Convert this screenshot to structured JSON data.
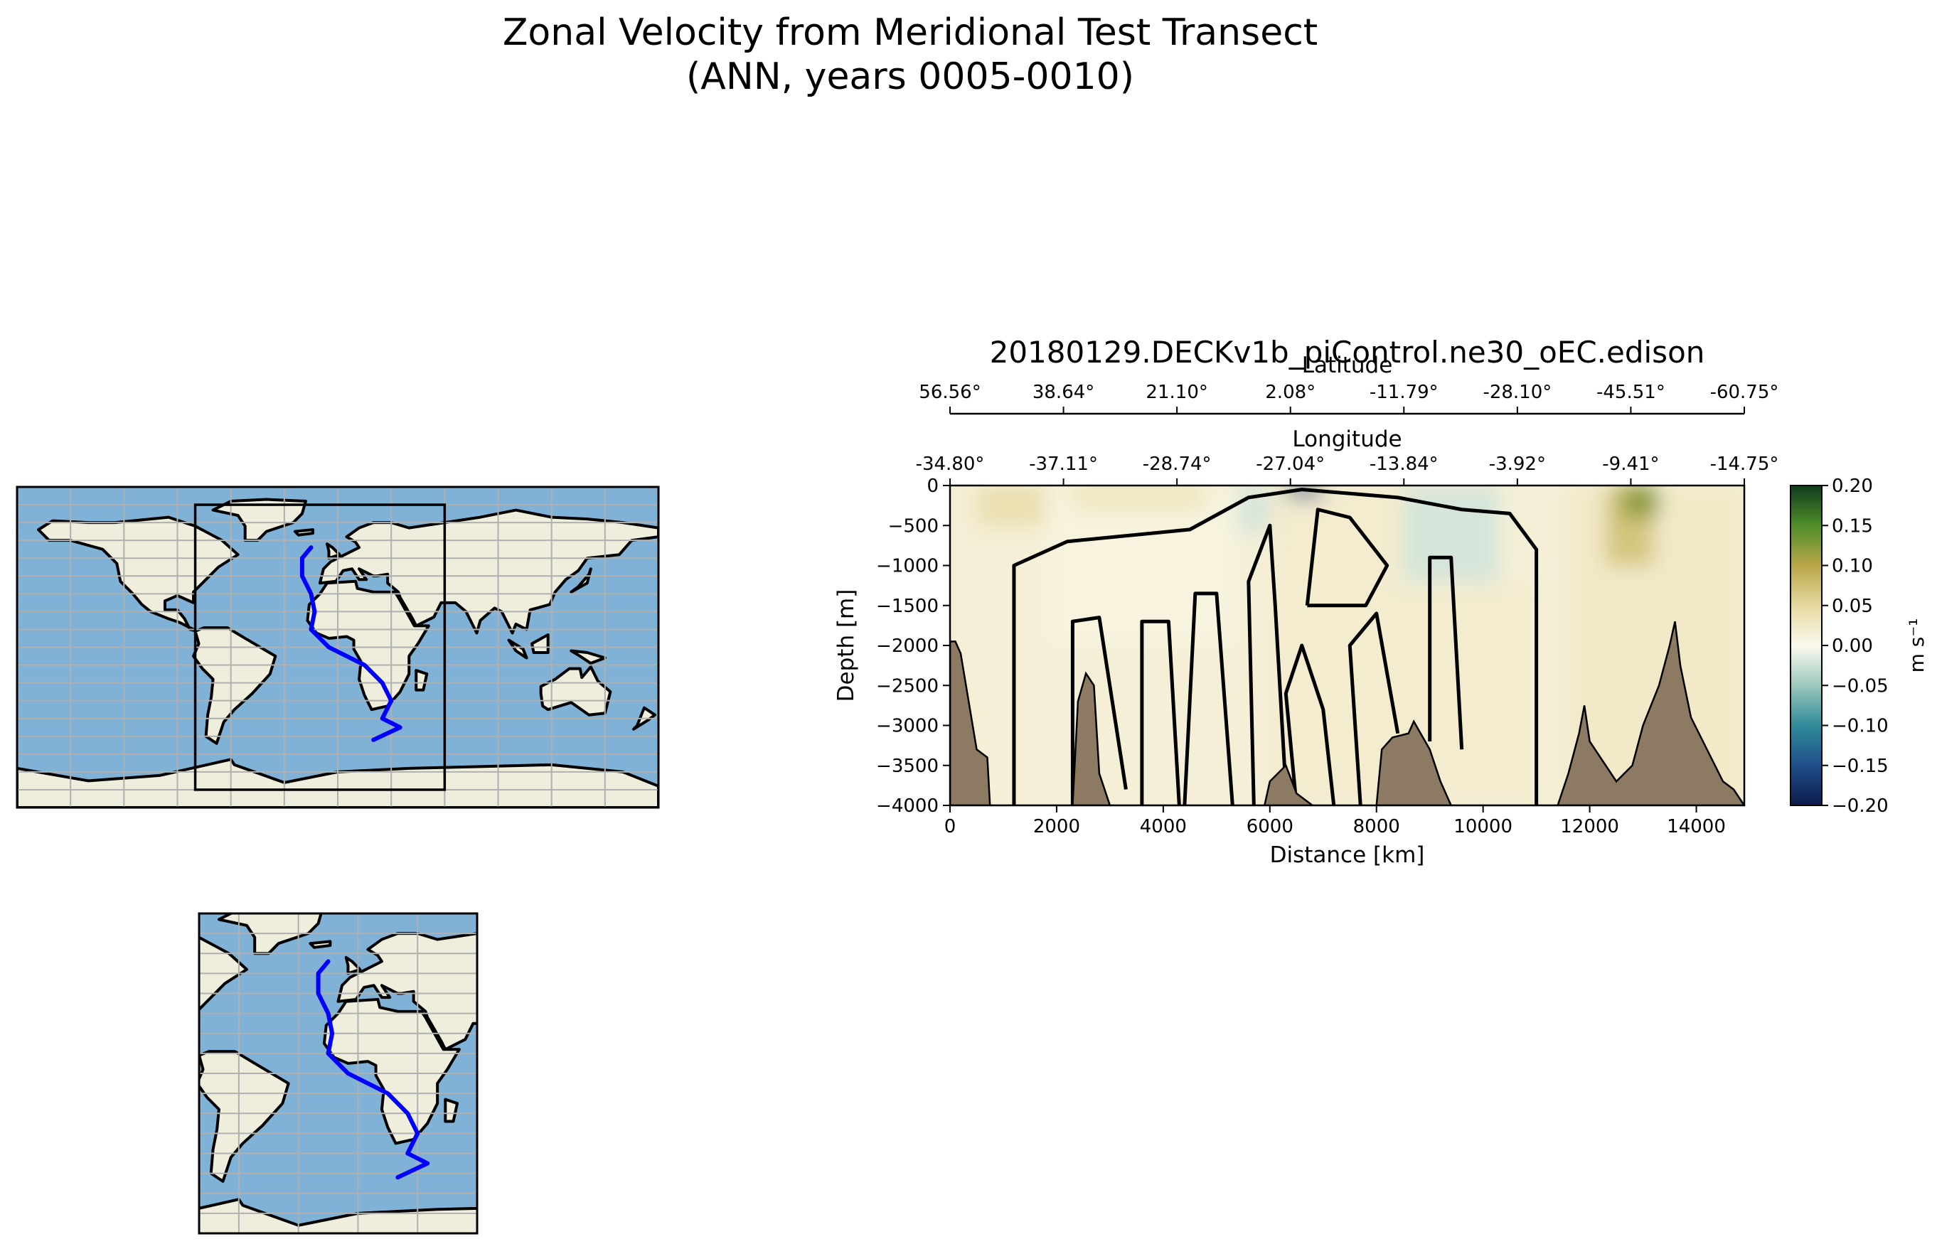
{
  "figure": {
    "suptitle_line1": "Zonal Velocity from Meridional Test Transect",
    "suptitle_line2": "(ANN, years 0005-0010)"
  },
  "maps": {
    "ocean_color": "#7fb2d6",
    "land_color": "#efeedd",
    "coast_color": "#000000",
    "grid_color": "#b0b0b0",
    "transect_color": "#0000ff",
    "global_lon_range": [
      -180,
      180
    ],
    "global_lat_range": [
      -90,
      90
    ],
    "inset_lon_range": [
      -80,
      60
    ],
    "inset_lat_range": [
      -80,
      80
    ],
    "transect_points": [
      [
        -15,
        56
      ],
      [
        -20,
        50
      ],
      [
        -20,
        40
      ],
      [
        -15,
        30
      ],
      [
        -13,
        20
      ],
      [
        -15,
        10
      ],
      [
        -5,
        0
      ],
      [
        15,
        -10
      ],
      [
        25,
        -20
      ],
      [
        30,
        -30
      ],
      [
        25,
        -40
      ],
      [
        35,
        -45
      ],
      [
        20,
        -52
      ]
    ]
  },
  "chart_data": {
    "type": "heatmap",
    "title": "20180129.DECKv1b_piControl.ne30_oEC.edison",
    "xlabel": "Distance [km]",
    "ylabel": "Depth [m]",
    "xlim": [
      0,
      14900
    ],
    "ylim": [
      -4000,
      0
    ],
    "x_ticks": [
      0,
      2000,
      4000,
      6000,
      8000,
      10000,
      12000,
      14000
    ],
    "x_tick_labels": [
      "0",
      "2000",
      "4000",
      "6000",
      "8000",
      "10000",
      "12000",
      "14000"
    ],
    "y_ticks": [
      0,
      -500,
      -1000,
      -1500,
      -2000,
      -2500,
      -3000,
      -3500,
      -4000
    ],
    "y_tick_labels": [
      "0",
      "−500",
      "−1000",
      "−1500",
      "−2000",
      "−2500",
      "−3000",
      "−3500",
      "−4000"
    ],
    "top_axes": [
      {
        "label": "Latitude",
        "tick_labels": [
          "56.56°",
          "38.64°",
          "21.10°",
          "2.08°",
          "-11.79°",
          "-28.10°",
          "-45.51°",
          "-60.75°"
        ]
      },
      {
        "label": "Longitude",
        "tick_labels": [
          "-34.80°",
          "-37.11°",
          "-28.74°",
          "-27.04°",
          "-13.84°",
          "-3.92°",
          "-9.41°",
          "-14.75°"
        ]
      }
    ],
    "colorbar": {
      "label": "m s⁻¹",
      "range": [
        -0.2,
        0.2
      ],
      "ticks": [
        0.2,
        0.15,
        0.1,
        0.05,
        0.0,
        -0.05,
        -0.1,
        -0.15,
        -0.2
      ],
      "tick_labels": [
        "0.20",
        "0.15",
        "0.10",
        "0.05",
        "0.00",
        "−0.05",
        "−0.10",
        "−0.15",
        "−0.20"
      ],
      "colors": [
        "#0e1a4a",
        "#1f4f8a",
        "#2f8a99",
        "#9cc8bd",
        "#fbf9ee",
        "#e6d9a0",
        "#b8a648",
        "#4f8e2a",
        "#0f3b1c"
      ]
    },
    "velocity_features": [
      {
        "x0": 500,
        "x1": 1800,
        "z0": 0,
        "z1": -500,
        "value": 0.04
      },
      {
        "x0": 1800,
        "x1": 5400,
        "z0": 0,
        "z1": -2000,
        "value": 0.01
      },
      {
        "x0": 2300,
        "x1": 4800,
        "z0": 0,
        "z1": -300,
        "value": 0.03
      },
      {
        "x0": 5400,
        "x1": 6000,
        "z0": 0,
        "z1": -600,
        "value": -0.02
      },
      {
        "x0": 6000,
        "x1": 8500,
        "z0": 0,
        "z1": -4000,
        "value": 0.02
      },
      {
        "x0": 6300,
        "x1": 7000,
        "z0": 0,
        "z1": -150,
        "value": -0.15
      },
      {
        "x0": 8500,
        "x1": 10300,
        "z0": 0,
        "z1": -1200,
        "value": -0.02
      },
      {
        "x0": 8500,
        "x1": 11000,
        "z0": -1200,
        "z1": -4000,
        "value": 0.02
      },
      {
        "x0": 11600,
        "x1": 14900,
        "z0": 0,
        "z1": -4000,
        "value": 0.025
      },
      {
        "x0": 12300,
        "x1": 13200,
        "z0": 0,
        "z1": -1000,
        "value": 0.07
      },
      {
        "x0": 12600,
        "x1": 13300,
        "z0": 0,
        "z1": -400,
        "value": 0.12
      }
    ],
    "bathymetry": [
      [
        0,
        -1950
      ],
      [
        100,
        -1950
      ],
      [
        200,
        -2100
      ],
      [
        500,
        -3300
      ],
      [
        700,
        -3400
      ],
      [
        750,
        -4000
      ],
      [
        2300,
        -4000
      ],
      [
        2400,
        -2700
      ],
      [
        2550,
        -2350
      ],
      [
        2700,
        -2500
      ],
      [
        2800,
        -3600
      ],
      [
        3000,
        -4000
      ],
      [
        5900,
        -4000
      ],
      [
        6000,
        -3700
      ],
      [
        6300,
        -3500
      ],
      [
        6500,
        -3850
      ],
      [
        6800,
        -4000
      ],
      [
        8000,
        -4000
      ],
      [
        8100,
        -3300
      ],
      [
        8300,
        -3150
      ],
      [
        8600,
        -3100
      ],
      [
        8700,
        -2950
      ],
      [
        9000,
        -3300
      ],
      [
        9200,
        -3700
      ],
      [
        9400,
        -4000
      ],
      [
        11400,
        -4000
      ],
      [
        11600,
        -3600
      ],
      [
        11800,
        -3100
      ],
      [
        11900,
        -2750
      ],
      [
        12000,
        -3200
      ],
      [
        12200,
        -3400
      ],
      [
        12500,
        -3700
      ],
      [
        12800,
        -3500
      ],
      [
        13000,
        -3000
      ],
      [
        13300,
        -2500
      ],
      [
        13500,
        -2000
      ],
      [
        13600,
        -1700
      ],
      [
        13700,
        -2250
      ],
      [
        13900,
        -2900
      ],
      [
        14200,
        -3300
      ],
      [
        14500,
        -3700
      ],
      [
        14700,
        -3800
      ],
      [
        14900,
        -4000
      ]
    ],
    "contours": [
      [
        [
          1200,
          -4000
        ],
        [
          1200,
          -1000
        ],
        [
          2200,
          -700
        ],
        [
          4500,
          -550
        ],
        [
          5600,
          -150
        ],
        [
          6600,
          -50
        ],
        [
          8400,
          -150
        ],
        [
          9600,
          -300
        ],
        [
          10500,
          -350
        ],
        [
          11000,
          -800
        ],
        [
          11000,
          -4000
        ]
      ],
      [
        [
          2300,
          -4000
        ],
        [
          2300,
          -1700
        ],
        [
          2800,
          -1650
        ],
        [
          3300,
          -3800
        ]
      ],
      [
        [
          3600,
          -4000
        ],
        [
          3600,
          -1700
        ],
        [
          4100,
          -1700
        ],
        [
          4300,
          -4000
        ]
      ],
      [
        [
          4400,
          -4000
        ],
        [
          4600,
          -1350
        ],
        [
          5000,
          -1350
        ],
        [
          5300,
          -4000
        ]
      ],
      [
        [
          5700,
          -4000
        ],
        [
          5600,
          -1200
        ],
        [
          6000,
          -500
        ],
        [
          6100,
          -1500
        ],
        [
          6300,
          -3800
        ]
      ],
      [
        [
          6500,
          -4000
        ],
        [
          6300,
          -2600
        ],
        [
          6600,
          -2000
        ],
        [
          7000,
          -2800
        ],
        [
          7200,
          -4000
        ]
      ],
      [
        [
          7700,
          -4000
        ],
        [
          7500,
          -2000
        ],
        [
          8000,
          -1600
        ],
        [
          8400,
          -3100
        ]
      ],
      [
        [
          6700,
          -1500
        ],
        [
          6900,
          -300
        ],
        [
          7500,
          -400
        ],
        [
          8200,
          -1000
        ],
        [
          7800,
          -1500
        ],
        [
          6700,
          -1500
        ]
      ],
      [
        [
          9000,
          -3200
        ],
        [
          9000,
          -900
        ],
        [
          9400,
          -900
        ],
        [
          9600,
          -3300
        ]
      ]
    ]
  }
}
